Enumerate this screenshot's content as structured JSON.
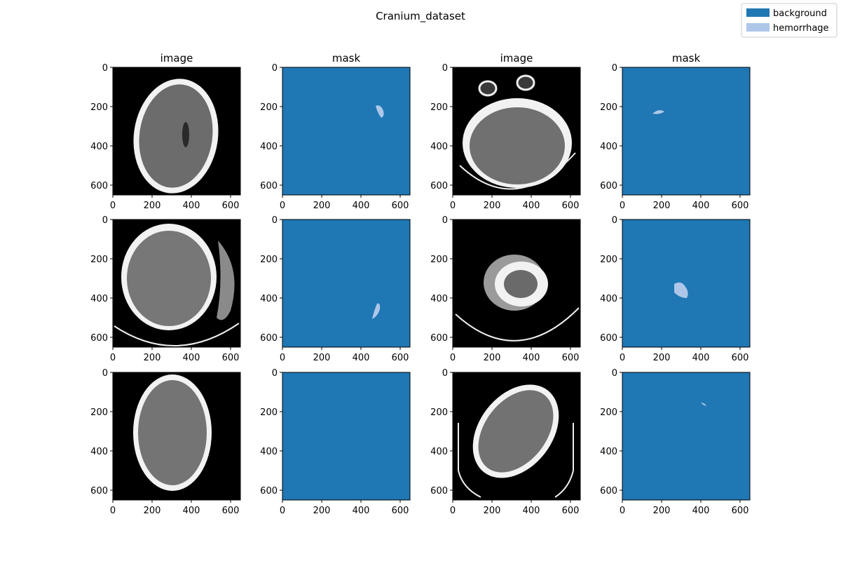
{
  "chart_data": {
    "type": "image-grid",
    "title": "Cranium_dataset",
    "legend": {
      "placement": "top-right",
      "entries": [
        {
          "label": "background",
          "color": "#1f77b4"
        },
        {
          "label": "hemorrhage",
          "color": "#aec7e8"
        }
      ]
    },
    "axes_range": {
      "x": [
        0,
        650
      ],
      "y": [
        650,
        0
      ]
    },
    "x_ticks": [
      "0",
      "200",
      "400",
      "600"
    ],
    "y_ticks": [
      "0",
      "200",
      "400",
      "600"
    ],
    "x_tick_values": [
      0,
      200,
      400,
      600
    ],
    "y_tick_values": [
      0,
      200,
      400,
      600
    ],
    "columns": [
      "image",
      "mask",
      "image",
      "mask"
    ],
    "rows": [
      {
        "panels": [
          {
            "kind": "image",
            "title": "image"
          },
          {
            "kind": "mask",
            "title": "mask"
          },
          {
            "kind": "image",
            "title": "image"
          },
          {
            "kind": "mask",
            "title": "mask"
          }
        ]
      },
      {
        "panels": [
          {
            "kind": "image",
            "title": ""
          },
          {
            "kind": "mask",
            "title": ""
          },
          {
            "kind": "image",
            "title": ""
          },
          {
            "kind": "mask",
            "title": ""
          }
        ]
      },
      {
        "panels": [
          {
            "kind": "image",
            "title": ""
          },
          {
            "kind": "mask",
            "title": ""
          },
          {
            "kind": "image",
            "title": ""
          },
          {
            "kind": "mask",
            "title": ""
          }
        ]
      }
    ]
  }
}
